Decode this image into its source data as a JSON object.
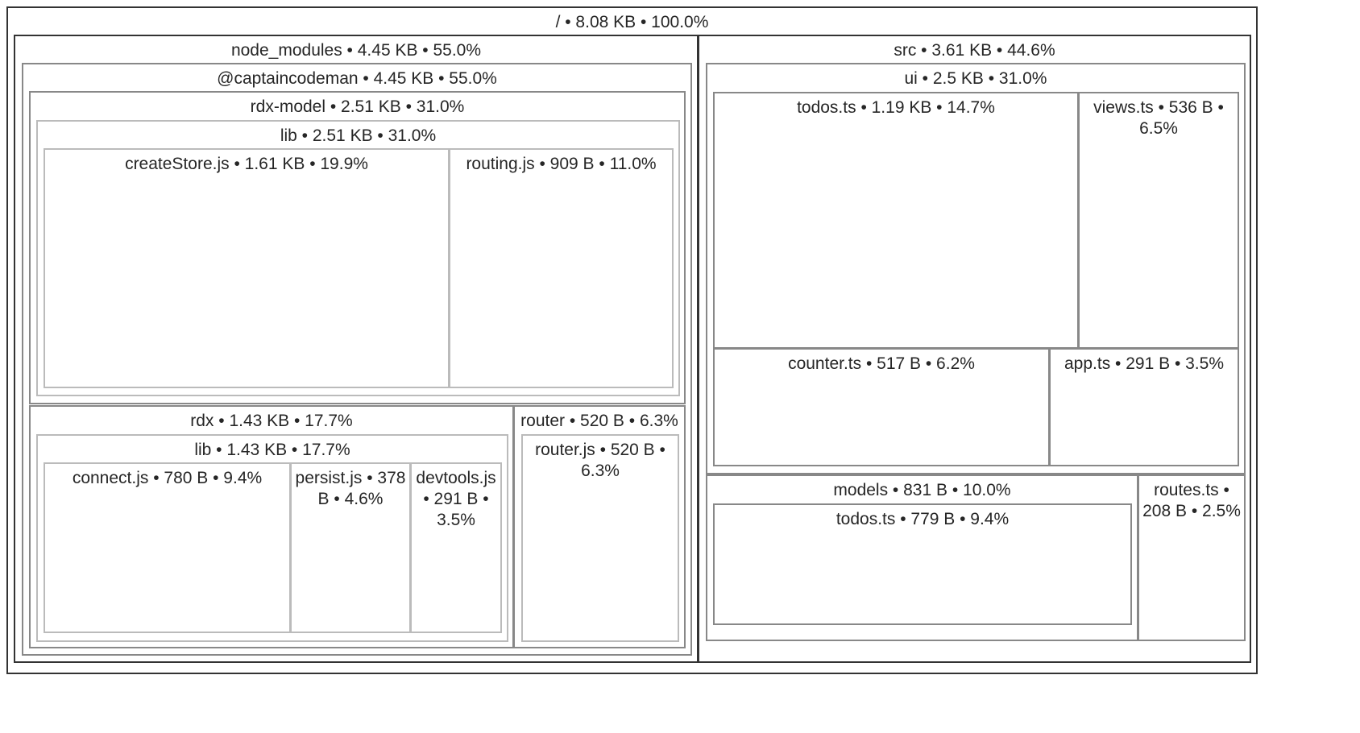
{
  "treemap": {
    "border_colors": [
      "#333333",
      "#888888",
      "#bbbbbb"
    ],
    "root": {
      "label": "/ • 8.08 KB • 100.0%",
      "children": [
        {
          "label": "node_modules • 4.45 KB • 55.0%",
          "children": [
            {
              "label": "@captaincodeman • 4.45 KB • 55.0%",
              "children": [
                {
                  "label": "rdx-model • 2.51 KB • 31.0%",
                  "children": [
                    {
                      "label": "lib • 2.51 KB • 31.0%",
                      "children": [
                        {
                          "label": "createStore.js • 1.61 KB • 19.9%"
                        },
                        {
                          "label": "routing.js • 909 B • 11.0%"
                        }
                      ]
                    }
                  ]
                },
                {
                  "label": "rdx • 1.43 KB • 17.7%",
                  "children": [
                    {
                      "label": "lib • 1.43 KB • 17.7%",
                      "children": [
                        {
                          "label": "connect.js • 780 B • 9.4%"
                        },
                        {
                          "label": "persist.js • 378 B • 4.6%"
                        },
                        {
                          "label": "devtools.js • 291 B • 3.5%"
                        }
                      ]
                    }
                  ]
                },
                {
                  "label": "router • 520 B • 6.3%",
                  "children": [
                    {
                      "label": "router.js • 520 B • 6.3%"
                    }
                  ]
                }
              ]
            }
          ]
        },
        {
          "label": "src • 3.61 KB • 44.6%",
          "children": [
            {
              "label": "ui • 2.5 KB • 31.0%",
              "children": [
                {
                  "label": "todos.ts • 1.19 KB • 14.7%"
                },
                {
                  "label": "views.ts • 536 B • 6.5%"
                },
                {
                  "label": "counter.ts • 517 B • 6.2%"
                },
                {
                  "label": "app.ts • 291 B • 3.5%"
                }
              ]
            },
            {
              "label": "models • 831 B • 10.0%",
              "children": [
                {
                  "label": "todos.ts • 779 B • 9.4%"
                }
              ]
            },
            {
              "label": "routes.ts • 208 B • 2.5%"
            }
          ]
        }
      ]
    }
  }
}
